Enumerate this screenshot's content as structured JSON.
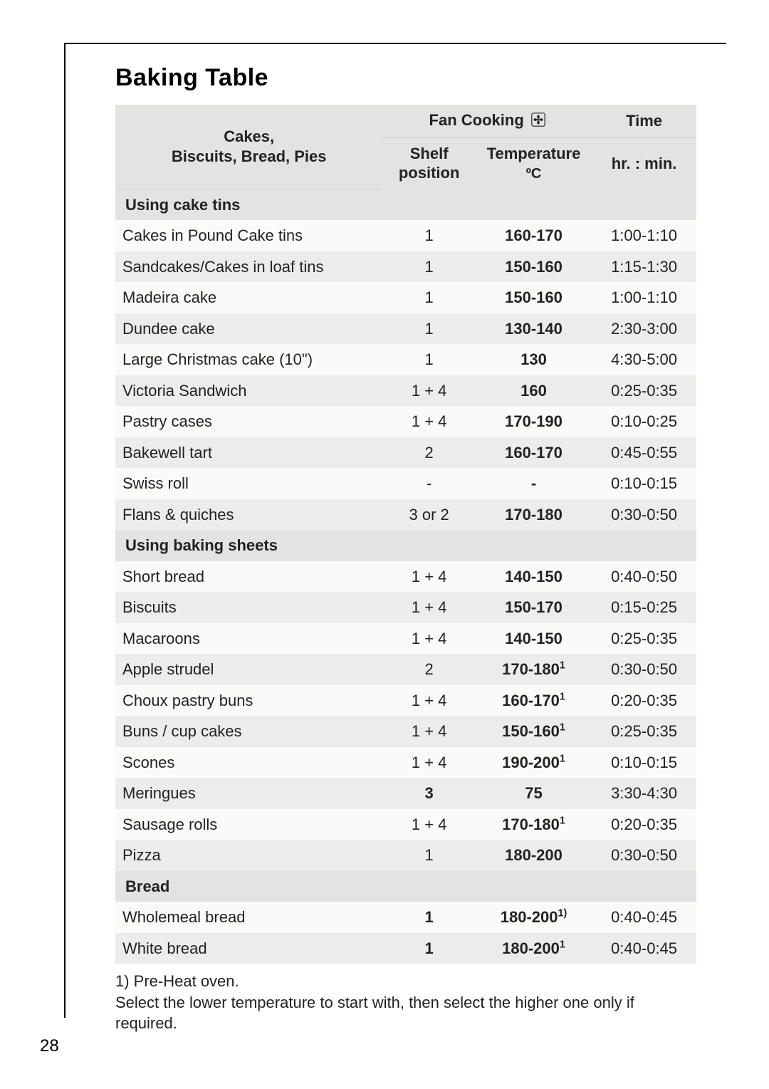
{
  "page": {
    "title": "Baking Table",
    "page_number": "28",
    "colors": {
      "header_bg": "#e3e3e1",
      "row_alt_a": "#fafaf9",
      "row_alt_b": "#ececea",
      "text": "#222222",
      "frame": "#000000",
      "background": "#ffffff"
    },
    "font_sizes": {
      "title": 34,
      "body": 22,
      "footnote": 22
    }
  },
  "table": {
    "header": {
      "left": "Cakes,\nBiscuits, Bread, Pies",
      "fan_cooking": "Fan Cooking",
      "time": "Time",
      "shelf": "Shelf position",
      "temperature": "Temperature",
      "temperature_unit": "ºC",
      "time_unit": "hr. : min."
    },
    "sections": [
      {
        "label": "Using cake tins",
        "rows": [
          {
            "item": "Cakes in Pound Cake tins",
            "shelf": "1",
            "temp": "160-170",
            "temp_sup": "",
            "time": "1:00-1:10"
          },
          {
            "item": "Sandcakes/Cakes in loaf tins",
            "shelf": "1",
            "temp": "150-160",
            "temp_sup": "",
            "time": "1:15-1:30"
          },
          {
            "item": "Madeira cake",
            "shelf": "1",
            "temp": "150-160",
            "temp_sup": "",
            "time": "1:00-1:10"
          },
          {
            "item": "Dundee cake",
            "shelf": "1",
            "temp": "130-140",
            "temp_sup": "",
            "time": "2:30-3:00"
          },
          {
            "item": "Large Christmas cake (10\")",
            "shelf": "1",
            "temp": "130",
            "temp_sup": "",
            "time": "4:30-5:00"
          },
          {
            "item": "Victoria Sandwich",
            "shelf": "1 + 4",
            "temp": "160",
            "temp_sup": "",
            "time": "0:25-0:35"
          },
          {
            "item": "Pastry cases",
            "shelf": "1 + 4",
            "temp": "170-190",
            "temp_sup": "",
            "time": "0:10-0:25"
          },
          {
            "item": "Bakewell tart",
            "shelf": "2",
            "temp": "160-170",
            "temp_sup": "",
            "time": "0:45-0:55"
          },
          {
            "item": "Swiss roll",
            "shelf": "-",
            "temp": "-",
            "temp_sup": "",
            "time": "0:10-0:15"
          },
          {
            "item": "Flans & quiches",
            "shelf": "3 or 2",
            "temp": "170-180",
            "temp_sup": "",
            "time": "0:30-0:50"
          }
        ]
      },
      {
        "label": "Using baking sheets",
        "rows": [
          {
            "item": "Short bread",
            "shelf": "1 + 4",
            "temp": "140-150",
            "temp_sup": "",
            "time": "0:40-0:50"
          },
          {
            "item": "Biscuits",
            "shelf": "1 + 4",
            "temp": "150-170",
            "temp_sup": "",
            "time": "0:15-0:25"
          },
          {
            "item": "Macaroons",
            "shelf": "1 + 4",
            "temp": "140-150",
            "temp_sup": "",
            "time": "0:25-0:35"
          },
          {
            "item": "Apple strudel",
            "shelf": "2",
            "temp": "170-180",
            "temp_sup": "1",
            "time": "0:30-0:50"
          },
          {
            "item": "Choux pastry buns",
            "shelf": "1 + 4",
            "temp": "160-170",
            "temp_sup": "1",
            "time": "0:20-0:35"
          },
          {
            "item": "Buns / cup cakes",
            "shelf": "1 + 4",
            "temp": "150-160",
            "temp_sup": "1",
            "time": "0:25-0:35"
          },
          {
            "item": "Scones",
            "shelf": "1 + 4",
            "temp": "190-200",
            "temp_sup": "1",
            "time": "0:10-0:15"
          },
          {
            "item": "Meringues",
            "shelf": "3",
            "temp": "75",
            "temp_sup": "",
            "time": "3:30-4:30",
            "shelf_bold": true
          },
          {
            "item": "Sausage rolls",
            "shelf": "1 + 4",
            "temp": "170-180",
            "temp_sup": "1",
            "time": "0:20-0:35"
          },
          {
            "item": "Pizza",
            "shelf": "1",
            "temp": "180-200",
            "temp_sup": "",
            "time": "0:30-0:50"
          }
        ]
      },
      {
        "label": "Bread",
        "rows": [
          {
            "item": "Wholemeal bread",
            "shelf": "1",
            "temp": "180-200",
            "temp_sup": "1)",
            "time": "0:40-0:45",
            "shelf_bold": true
          },
          {
            "item": "White bread",
            "shelf": "1",
            "temp": "180-200",
            "temp_sup": "1",
            "time": "0:40-0:45",
            "shelf_bold": true
          }
        ]
      }
    ]
  },
  "footnotes": {
    "line1": "1) Pre-Heat oven.",
    "line2": "Select the lower temperature to start with, then select the higher one only if required."
  }
}
